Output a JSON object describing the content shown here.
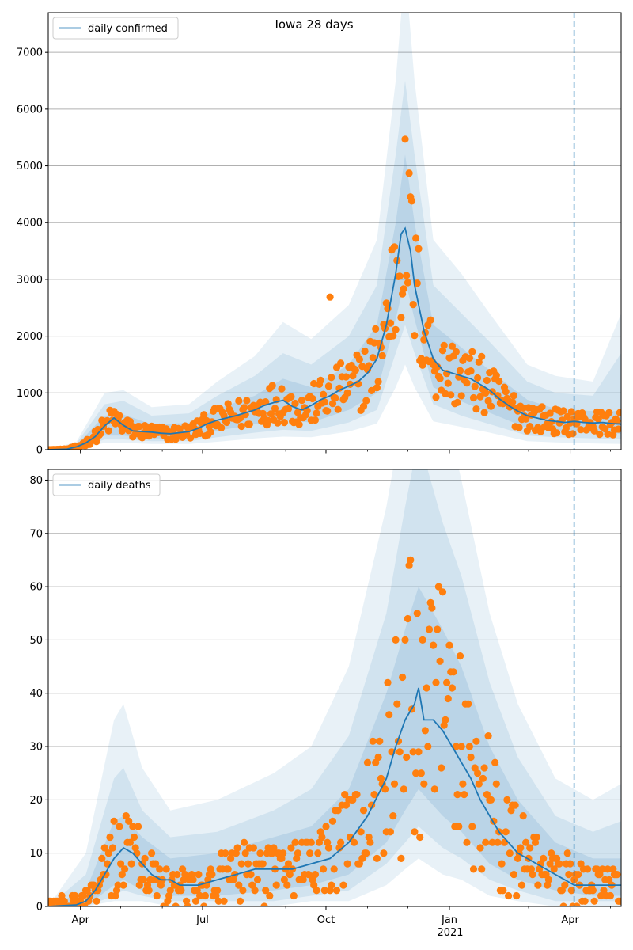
{
  "chart_data": [
    {
      "type": "line",
      "title": "Iowa 28 days",
      "legend": {
        "label": "daily confirmed",
        "placement": "top-left"
      },
      "ylim": [
        0,
        7700
      ],
      "yticks": [
        0,
        1000,
        2000,
        3000,
        4000,
        5000,
        6000,
        7000
      ],
      "grid": "horizontal",
      "colors": {
        "line": "#1f77b4",
        "points": "#ff7f0e",
        "band": "#1f77b4",
        "vline": "#1f77b4"
      },
      "forecast_start_day": 392,
      "line": [
        [
          0,
          0
        ],
        [
          14,
          10
        ],
        [
          21,
          50
        ],
        [
          28,
          120
        ],
        [
          35,
          230
        ],
        [
          42,
          420
        ],
        [
          49,
          560
        ],
        [
          56,
          430
        ],
        [
          63,
          330
        ],
        [
          70,
          320
        ],
        [
          77,
          310
        ],
        [
          84,
          290
        ],
        [
          91,
          280
        ],
        [
          98,
          300
        ],
        [
          105,
          320
        ],
        [
          112,
          380
        ],
        [
          119,
          460
        ],
        [
          126,
          520
        ],
        [
          133,
          560
        ],
        [
          140,
          600
        ],
        [
          147,
          650
        ],
        [
          154,
          700
        ],
        [
          161,
          780
        ],
        [
          168,
          830
        ],
        [
          175,
          870
        ],
        [
          182,
          760
        ],
        [
          189,
          700
        ],
        [
          196,
          780
        ],
        [
          203,
          880
        ],
        [
          210,
          950
        ],
        [
          217,
          1050
        ],
        [
          224,
          1120
        ],
        [
          231,
          1200
        ],
        [
          238,
          1350
        ],
        [
          245,
          1600
        ],
        [
          252,
          2200
        ],
        [
          259,
          3100
        ],
        [
          263,
          3800
        ],
        [
          266,
          3900
        ],
        [
          270,
          3500
        ],
        [
          273,
          2900
        ],
        [
          280,
          2100
        ],
        [
          287,
          1600
        ],
        [
          294,
          1400
        ],
        [
          301,
          1350
        ],
        [
          308,
          1300
        ],
        [
          315,
          1250
        ],
        [
          322,
          1150
        ],
        [
          329,
          1050
        ],
        [
          336,
          900
        ],
        [
          343,
          780
        ],
        [
          350,
          680
        ],
        [
          357,
          600
        ],
        [
          364,
          560
        ],
        [
          371,
          520
        ],
        [
          378,
          500
        ],
        [
          385,
          480
        ],
        [
          392,
          500
        ],
        [
          399,
          480
        ],
        [
          406,
          470
        ],
        [
          413,
          480
        ],
        [
          420,
          460
        ],
        [
          427,
          450
        ]
      ],
      "band_inner": [
        [
          0,
          0,
          0
        ],
        [
          21,
          20,
          80
        ],
        [
          42,
          250,
          600
        ],
        [
          56,
          250,
          620
        ],
        [
          77,
          200,
          450
        ],
        [
          105,
          200,
          470
        ],
        [
          126,
          330,
          720
        ],
        [
          154,
          450,
          950
        ],
        [
          175,
          520,
          1250
        ],
        [
          196,
          480,
          1100
        ],
        [
          224,
          700,
          1500
        ],
        [
          245,
          1000,
          2200
        ],
        [
          259,
          2300,
          4000
        ],
        [
          266,
          3000,
          5200
        ],
        [
          273,
          2300,
          4000
        ],
        [
          287,
          1100,
          2200
        ],
        [
          308,
          850,
          1800
        ],
        [
          329,
          650,
          1400
        ],
        [
          357,
          380,
          880
        ],
        [
          378,
          330,
          720
        ],
        [
          406,
          300,
          680
        ],
        [
          427,
          280,
          680
        ]
      ],
      "band_middle": [
        [
          0,
          0,
          0
        ],
        [
          21,
          10,
          110
        ],
        [
          42,
          180,
          800
        ],
        [
          56,
          180,
          860
        ],
        [
          77,
          150,
          600
        ],
        [
          105,
          150,
          640
        ],
        [
          126,
          220,
          950
        ],
        [
          154,
          300,
          1300
        ],
        [
          175,
          350,
          1700
        ],
        [
          196,
          330,
          1500
        ],
        [
          224,
          480,
          2000
        ],
        [
          245,
          700,
          2900
        ],
        [
          259,
          1700,
          5200
        ],
        [
          266,
          2200,
          6500
        ],
        [
          273,
          1700,
          5200
        ],
        [
          287,
          800,
          2900
        ],
        [
          308,
          600,
          2400
        ],
        [
          329,
          450,
          1900
        ],
        [
          357,
          250,
          1200
        ],
        [
          378,
          220,
          1000
        ],
        [
          406,
          200,
          950
        ],
        [
          427,
          180,
          1700
        ]
      ],
      "band_outer": [
        [
          0,
          0,
          0
        ],
        [
          21,
          0,
          140
        ],
        [
          42,
          120,
          1000
        ],
        [
          56,
          120,
          1050
        ],
        [
          77,
          100,
          750
        ],
        [
          105,
          100,
          800
        ],
        [
          126,
          140,
          1200
        ],
        [
          154,
          200,
          1650
        ],
        [
          175,
          230,
          2250
        ],
        [
          196,
          220,
          1950
        ],
        [
          224,
          320,
          2550
        ],
        [
          245,
          460,
          3700
        ],
        [
          259,
          1100,
          6500
        ],
        [
          266,
          1500,
          8500
        ],
        [
          273,
          1100,
          6500
        ],
        [
          287,
          500,
          3700
        ],
        [
          308,
          400,
          3100
        ],
        [
          329,
          300,
          2400
        ],
        [
          357,
          150,
          1500
        ],
        [
          378,
          130,
          1300
        ],
        [
          406,
          110,
          1200
        ],
        [
          427,
          100,
          2400
        ]
      ]
    },
    {
      "type": "line",
      "title": "",
      "legend": {
        "label": "daily deaths",
        "placement": "top-left"
      },
      "ylim": [
        0,
        82
      ],
      "yticks": [
        0,
        10,
        20,
        30,
        40,
        50,
        60,
        70,
        80
      ],
      "grid": "horizontal",
      "colors": {
        "line": "#1f77b4",
        "points": "#ff7f0e",
        "band": "#1f77b4",
        "vline": "#1f77b4"
      },
      "forecast_start_day": 392,
      "line": [
        [
          0,
          0
        ],
        [
          21,
          0.3
        ],
        [
          28,
          1
        ],
        [
          35,
          3
        ],
        [
          42,
          6
        ],
        [
          49,
          9
        ],
        [
          56,
          11
        ],
        [
          63,
          10
        ],
        [
          70,
          8
        ],
        [
          77,
          6
        ],
        [
          84,
          5
        ],
        [
          91,
          5
        ],
        [
          98,
          4
        ],
        [
          105,
          4
        ],
        [
          112,
          4
        ],
        [
          126,
          5
        ],
        [
          140,
          6
        ],
        [
          154,
          7
        ],
        [
          168,
          7
        ],
        [
          182,
          7
        ],
        [
          196,
          8
        ],
        [
          210,
          9
        ],
        [
          224,
          12
        ],
        [
          238,
          17
        ],
        [
          252,
          24
        ],
        [
          259,
          30
        ],
        [
          266,
          35
        ],
        [
          273,
          38
        ],
        [
          276,
          41
        ],
        [
          280,
          35
        ],
        [
          287,
          35
        ],
        [
          294,
          33
        ],
        [
          301,
          30
        ],
        [
          308,
          27
        ],
        [
          315,
          24
        ],
        [
          322,
          20
        ],
        [
          329,
          17
        ],
        [
          336,
          14
        ],
        [
          343,
          12
        ],
        [
          350,
          10
        ],
        [
          357,
          9
        ],
        [
          364,
          8
        ],
        [
          371,
          7
        ],
        [
          378,
          6
        ],
        [
          385,
          5
        ],
        [
          392,
          4
        ],
        [
          399,
          4
        ],
        [
          406,
          4
        ],
        [
          413,
          4
        ],
        [
          420,
          4
        ],
        [
          427,
          4
        ]
      ],
      "band_inner": [
        [
          0,
          0,
          0
        ],
        [
          28,
          0,
          3
        ],
        [
          49,
          4,
          16
        ],
        [
          56,
          5,
          17
        ],
        [
          70,
          3,
          13
        ],
        [
          91,
          2,
          9
        ],
        [
          126,
          2,
          10
        ],
        [
          168,
          3,
          13
        ],
        [
          196,
          4,
          15
        ],
        [
          224,
          6,
          22
        ],
        [
          252,
          12,
          40
        ],
        [
          266,
          18,
          52
        ],
        [
          276,
          22,
          60
        ],
        [
          294,
          17,
          52
        ],
        [
          308,
          14,
          45
        ],
        [
          329,
          8,
          30
        ],
        [
          350,
          5,
          20
        ],
        [
          378,
          3,
          12
        ],
        [
          406,
          2,
          9
        ],
        [
          427,
          2,
          9
        ]
      ],
      "band_middle": [
        [
          0,
          0,
          0
        ],
        [
          28,
          0,
          6
        ],
        [
          49,
          2,
          24
        ],
        [
          56,
          3,
          26
        ],
        [
          70,
          2,
          18
        ],
        [
          91,
          1,
          13
        ],
        [
          126,
          1,
          14
        ],
        [
          168,
          1,
          18
        ],
        [
          196,
          2,
          22
        ],
        [
          224,
          3,
          32
        ],
        [
          252,
          8,
          55
        ],
        [
          266,
          12,
          75
        ],
        [
          276,
          15,
          88
        ],
        [
          294,
          11,
          72
        ],
        [
          308,
          9,
          62
        ],
        [
          329,
          5,
          42
        ],
        [
          350,
          3,
          28
        ],
        [
          378,
          1,
          17
        ],
        [
          406,
          1,
          14
        ],
        [
          427,
          1,
          16
        ]
      ],
      "band_outer": [
        [
          0,
          0,
          0
        ],
        [
          28,
          0,
          10
        ],
        [
          49,
          1,
          35
        ],
        [
          56,
          1,
          38
        ],
        [
          70,
          1,
          26
        ],
        [
          91,
          0,
          18
        ],
        [
          126,
          0,
          20
        ],
        [
          168,
          0,
          25
        ],
        [
          196,
          1,
          30
        ],
        [
          224,
          1,
          45
        ],
        [
          252,
          4,
          75
        ],
        [
          266,
          7,
          95
        ],
        [
          276,
          9,
          110
        ],
        [
          294,
          6,
          95
        ],
        [
          308,
          5,
          80
        ],
        [
          329,
          2,
          55
        ],
        [
          350,
          1,
          38
        ],
        [
          378,
          0,
          24
        ],
        [
          406,
          0,
          20
        ],
        [
          427,
          0,
          23
        ]
      ]
    }
  ],
  "shared_x": {
    "type": "date",
    "start": "2020-03-08",
    "end": "2021-05-09",
    "tick_days": [
      24,
      115,
      207,
      299,
      389
    ],
    "tick_labels": [
      "Apr",
      "Jul",
      "Oct",
      "Jan",
      "Apr"
    ],
    "year_label": "2021"
  }
}
